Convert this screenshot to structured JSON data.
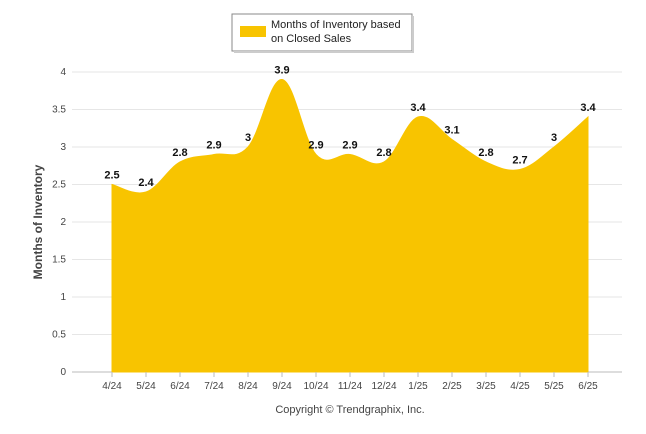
{
  "chart_data": {
    "type": "area",
    "title": "",
    "xlabel": "",
    "ylabel": "Months of Inventory",
    "categories": [
      "4/24",
      "5/24",
      "6/24",
      "7/24",
      "8/24",
      "9/24",
      "10/24",
      "11/24",
      "12/24",
      "1/25",
      "2/25",
      "3/25",
      "4/25",
      "5/25",
      "6/25"
    ],
    "series": [
      {
        "name": "Months of Inventory based on Closed Sales",
        "values": [
          2.5,
          2.4,
          2.8,
          2.9,
          3,
          3.9,
          2.9,
          2.9,
          2.8,
          3.4,
          3.1,
          2.8,
          2.7,
          3,
          3.4
        ],
        "labels": [
          "2.5",
          "2.4",
          "2.8",
          "2.9",
          "3",
          "3.9",
          "2.9",
          "2.9",
          "2.8",
          "3.4",
          "3.1",
          "2.8",
          "2.7",
          "3",
          "3.4"
        ],
        "color": "#F8C400"
      }
    ],
    "ylim": [
      0,
      4
    ],
    "yticks": [
      "0",
      "0.5",
      "1",
      "1.5",
      "2",
      "2.5",
      "3",
      "3.5",
      "4"
    ],
    "ytick_values": [
      0,
      0.5,
      1,
      1.5,
      2,
      2.5,
      3,
      3.5,
      4
    ],
    "grid": true,
    "legend": {
      "placement": "top-center",
      "line1": "Months of Inventory based",
      "line2": "on Closed Sales"
    },
    "footer": "Copyright © Trendgraphix, Inc."
  }
}
